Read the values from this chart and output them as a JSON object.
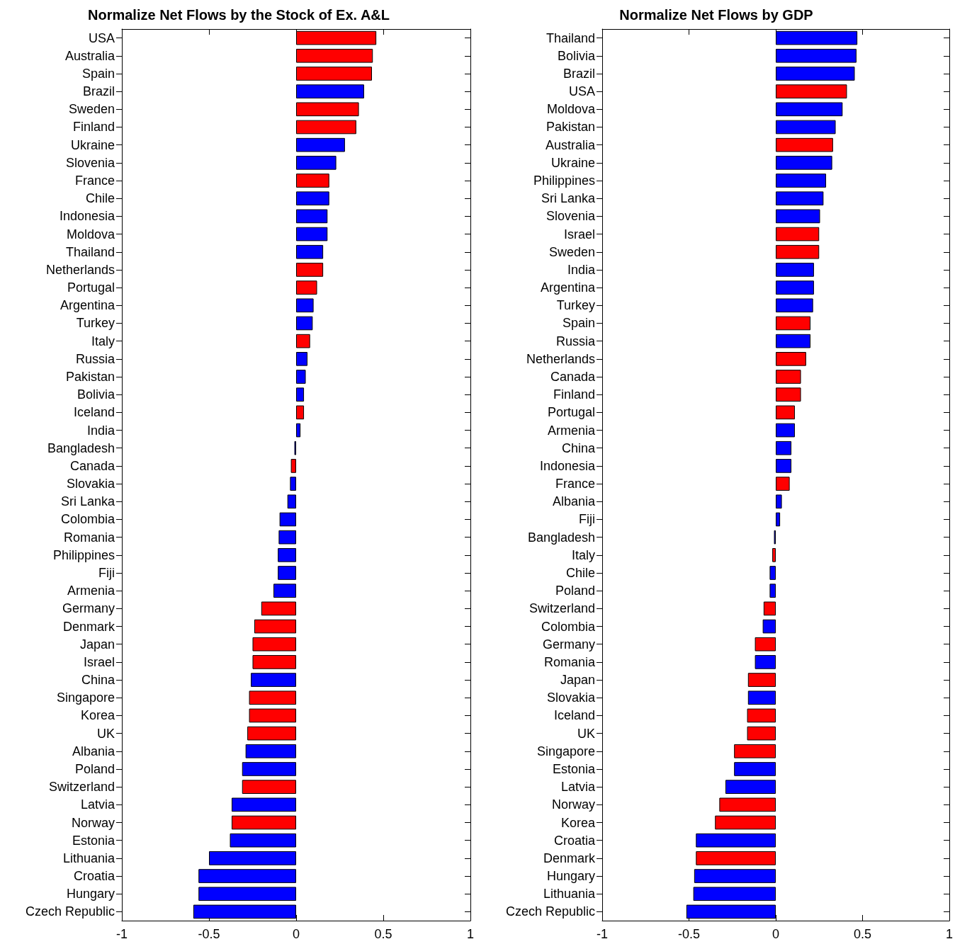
{
  "chart_data": [
    {
      "type": "bar",
      "orientation": "horizontal",
      "title": "Normalize Net Flows by the Stock of Ex. A&L",
      "grid": false,
      "xlim": [
        -1,
        1
      ],
      "xticks": [
        -1,
        -0.5,
        0,
        0.5,
        1
      ],
      "categories": [
        "USA",
        "Australia",
        "Spain",
        "Brazil",
        "Sweden",
        "Finland",
        "Ukraine",
        "Slovenia",
        "France",
        "Chile",
        "Indonesia",
        "Moldova",
        "Thailand",
        "Netherlands",
        "Portugal",
        "Argentina",
        "Turkey",
        "Italy",
        "Russia",
        "Pakistan",
        "Bolivia",
        "Iceland",
        "India",
        "Bangladesh",
        "Canada",
        "Slovakia",
        "Sri Lanka",
        "Colombia",
        "Romania",
        "Philippines",
        "Fiji",
        "Armenia",
        "Germany",
        "Denmark",
        "Japan",
        "Israel",
        "China",
        "Singapore",
        "Korea",
        "UK",
        "Albania",
        "Poland",
        "Switzerland",
        "Latvia",
        "Norway",
        "Estonia",
        "Lithuania",
        "Croatia",
        "Hungary",
        "Czech Republic"
      ],
      "values": [
        0.46,
        0.44,
        0.435,
        0.39,
        0.36,
        0.345,
        0.28,
        0.23,
        0.19,
        0.19,
        0.18,
        0.18,
        0.155,
        0.155,
        0.12,
        0.1,
        0.095,
        0.08,
        0.065,
        0.055,
        0.045,
        0.045,
        0.025,
        -0.01,
        -0.03,
        -0.035,
        -0.05,
        -0.095,
        -0.1,
        -0.105,
        -0.105,
        -0.13,
        -0.2,
        -0.24,
        -0.25,
        -0.25,
        -0.26,
        -0.27,
        -0.27,
        -0.28,
        -0.29,
        -0.31,
        -0.31,
        -0.37,
        -0.37,
        -0.38,
        -0.5,
        -0.56,
        -0.56,
        -0.59
      ],
      "colors": [
        "#ff0000",
        "#ff0000",
        "#ff0000",
        "#0000ff",
        "#ff0000",
        "#ff0000",
        "#0000ff",
        "#0000ff",
        "#ff0000",
        "#0000ff",
        "#0000ff",
        "#0000ff",
        "#0000ff",
        "#ff0000",
        "#ff0000",
        "#0000ff",
        "#0000ff",
        "#ff0000",
        "#0000ff",
        "#0000ff",
        "#0000ff",
        "#ff0000",
        "#0000ff",
        "#0000ff",
        "#ff0000",
        "#0000ff",
        "#0000ff",
        "#0000ff",
        "#0000ff",
        "#0000ff",
        "#0000ff",
        "#0000ff",
        "#ff0000",
        "#ff0000",
        "#ff0000",
        "#ff0000",
        "#0000ff",
        "#ff0000",
        "#ff0000",
        "#ff0000",
        "#0000ff",
        "#0000ff",
        "#ff0000",
        "#0000ff",
        "#ff0000",
        "#0000ff",
        "#0000ff",
        "#0000ff",
        "#0000ff",
        "#0000ff"
      ]
    },
    {
      "type": "bar",
      "orientation": "horizontal",
      "title": "Normalize Net Flows by GDP",
      "grid": false,
      "xlim": [
        -1,
        1
      ],
      "xticks": [
        -1,
        -0.5,
        0,
        0.5,
        1
      ],
      "categories": [
        "Thailand",
        "Bolivia",
        "Brazil",
        "USA",
        "Moldova",
        "Pakistan",
        "Australia",
        "Ukraine",
        "Philippines",
        "Sri Lanka",
        "Slovenia",
        "Israel",
        "Sweden",
        "India",
        "Argentina",
        "Turkey",
        "Spain",
        "Russia",
        "Netherlands",
        "Canada",
        "Finland",
        "Portugal",
        "Armenia",
        "China",
        "Indonesia",
        "France",
        "Albania",
        "Fiji",
        "Bangladesh",
        "Italy",
        "Chile",
        "Poland",
        "Switzerland",
        "Colombia",
        "Germany",
        "Romania",
        "Japan",
        "Slovakia",
        "Iceland",
        "UK",
        "Singapore",
        "Estonia",
        "Latvia",
        "Norway",
        "Korea",
        "Croatia",
        "Denmark",
        "Hungary",
        "Lithuania",
        "Czech Republic"
      ],
      "values": [
        0.47,
        0.465,
        0.455,
        0.41,
        0.385,
        0.345,
        0.33,
        0.325,
        0.29,
        0.275,
        0.255,
        0.25,
        0.25,
        0.22,
        0.22,
        0.215,
        0.2,
        0.2,
        0.175,
        0.145,
        0.145,
        0.11,
        0.11,
        0.09,
        0.09,
        0.08,
        0.035,
        0.025,
        -0.01,
        -0.02,
        -0.035,
        -0.035,
        -0.07,
        -0.075,
        -0.12,
        -0.12,
        -0.16,
        -0.16,
        -0.165,
        -0.165,
        -0.24,
        -0.24,
        -0.29,
        -0.325,
        -0.35,
        -0.46,
        -0.46,
        -0.47,
        -0.475,
        -0.515
      ],
      "colors": [
        "#0000ff",
        "#0000ff",
        "#0000ff",
        "#ff0000",
        "#0000ff",
        "#0000ff",
        "#ff0000",
        "#0000ff",
        "#0000ff",
        "#0000ff",
        "#0000ff",
        "#ff0000",
        "#ff0000",
        "#0000ff",
        "#0000ff",
        "#0000ff",
        "#ff0000",
        "#0000ff",
        "#ff0000",
        "#ff0000",
        "#ff0000",
        "#ff0000",
        "#0000ff",
        "#0000ff",
        "#0000ff",
        "#ff0000",
        "#0000ff",
        "#0000ff",
        "#0000ff",
        "#ff0000",
        "#0000ff",
        "#0000ff",
        "#ff0000",
        "#0000ff",
        "#ff0000",
        "#0000ff",
        "#ff0000",
        "#0000ff",
        "#ff0000",
        "#ff0000",
        "#ff0000",
        "#0000ff",
        "#0000ff",
        "#ff0000",
        "#ff0000",
        "#0000ff",
        "#ff0000",
        "#0000ff",
        "#0000ff",
        "#0000ff"
      ]
    }
  ]
}
